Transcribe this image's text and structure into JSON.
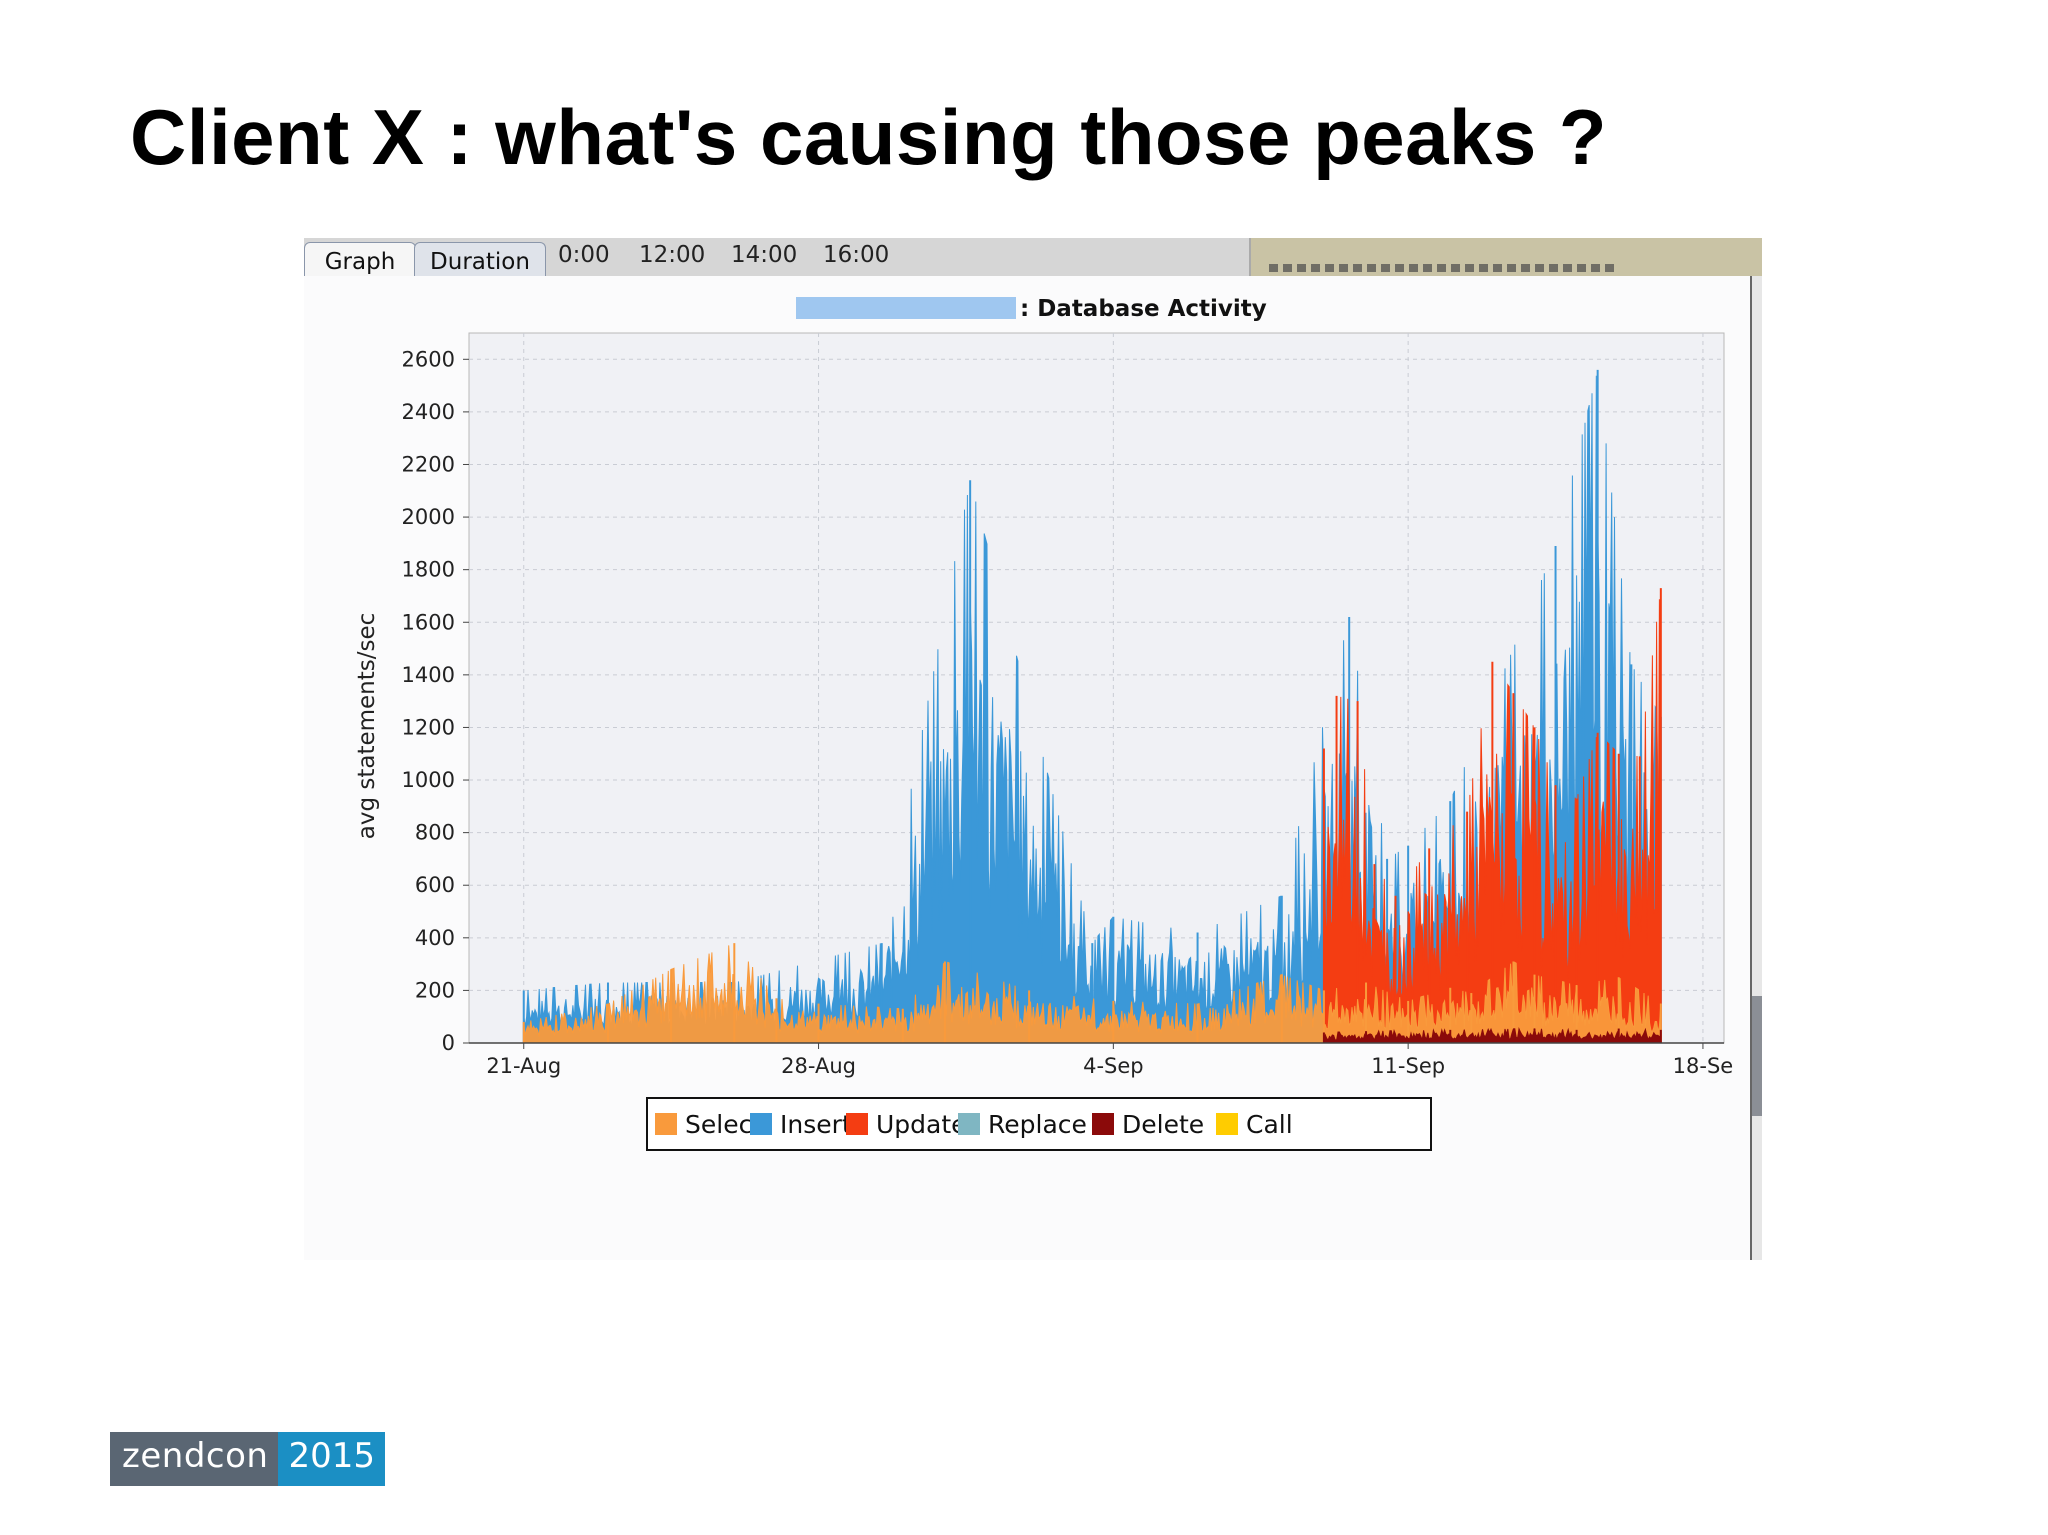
{
  "slide": {
    "title": "Client X : what's causing those peaks ?"
  },
  "window": {
    "tabs": [
      {
        "label": "Graph"
      },
      {
        "label": "Duration"
      }
    ],
    "time_labels": [
      "0:00",
      "12:00",
      "14:00",
      "16:00"
    ]
  },
  "logo": {
    "brand": "zendcon",
    "year": "2015"
  },
  "colors": {
    "Select": "#f99a3c",
    "Insert": "#3b98d8",
    "Update": "#f43d12",
    "Replace": "#7fb6c2",
    "Delete": "#8b0a0a",
    "Call": "#ffcc00"
  },
  "chart_data": {
    "type": "area",
    "title": ": Database Activity",
    "xlabel": "",
    "ylabel": "avg statements/sec",
    "ylim": [
      0,
      2700
    ],
    "yticks": [
      0,
      200,
      400,
      600,
      800,
      1000,
      1200,
      1400,
      1600,
      1800,
      2000,
      2200,
      2400,
      2600
    ],
    "xticks": [
      "21-Aug",
      "28-Aug",
      "4-Sep",
      "11-Sep",
      "18-Se"
    ],
    "xlim_days": [
      -1.3,
      28.5
    ],
    "grid": true,
    "legend_position": "bottom",
    "legend": [
      "Select",
      "Insert",
      "Update",
      "Replace",
      "Delete",
      "Call"
    ],
    "series": [
      {
        "name": "Select",
        "x_days": [
          0,
          2,
          3.5,
          5,
          6,
          7,
          9,
          10,
          12,
          14,
          16,
          18,
          19,
          20,
          21,
          22,
          22.5,
          23.5,
          24,
          25,
          26,
          27
        ],
        "values": [
          80,
          150,
          280,
          380,
          170,
          150,
          130,
          310,
          200,
          160,
          150,
          260,
          200,
          230,
          160,
          210,
          190,
          310,
          260,
          220,
          250,
          150
        ]
      },
      {
        "name": "Insert",
        "x_days": [
          0,
          2,
          5,
          8.5,
          10.6,
          13.5,
          14,
          16,
          18,
          19.6,
          20.5,
          21,
          22,
          24.5,
          25.5,
          26.3,
          27
        ],
        "values": [
          200,
          230,
          230,
          380,
          2140,
          380,
          480,
          420,
          560,
          1620,
          700,
          750,
          920,
          1890,
          2560,
          1440,
          1240
        ]
      },
      {
        "name": "Update",
        "x_days": [
          19,
          19.3,
          19.8,
          20.2,
          20.7,
          21.5,
          22.4,
          23,
          23.5,
          24,
          24.5,
          25,
          25.5,
          26,
          26.5,
          27
        ],
        "values": [
          1120,
          1320,
          1300,
          680,
          560,
          740,
          880,
          1450,
          1330,
          1200,
          980,
          930,
          1180,
          1100,
          1090,
          1730
        ]
      },
      {
        "name": "Replace",
        "x_days": [
          0,
          27
        ],
        "values": [
          0,
          0
        ]
      },
      {
        "name": "Delete",
        "x_days": [
          19,
          20,
          22,
          24,
          25,
          26,
          27
        ],
        "values": [
          40,
          45,
          50,
          55,
          50,
          55,
          50
        ]
      },
      {
        "name": "Call",
        "x_days": [
          0,
          27
        ],
        "values": [
          0,
          0
        ]
      }
    ]
  }
}
